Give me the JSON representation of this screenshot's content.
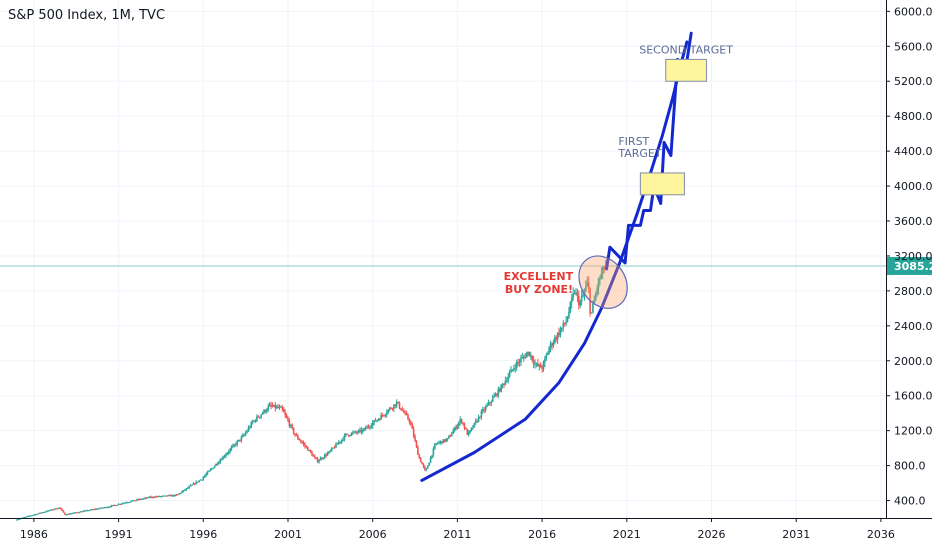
{
  "chart_data": {
    "type": "candlestick",
    "title": "S&P 500 Index, 1M, TVC",
    "x_ticks": [
      "1986",
      "1991",
      "1996",
      "2001",
      "2006",
      "2011",
      "2016",
      "2021",
      "2026",
      "2031",
      "2036"
    ],
    "y_ticks": [
      "400.0",
      "800.0",
      "1200.0",
      "1600.0",
      "2000.0",
      "2400.0",
      "2800.0",
      "3200.0",
      "3600.0",
      "4000.0",
      "4400.0",
      "4800.0",
      "5200.0",
      "5600.0",
      "6000.0"
    ],
    "xlim": [
      1984.0,
      2036.3
    ],
    "ylim": [
      200,
      6130
    ],
    "grid": true,
    "price_line": {
      "value": 3085.2,
      "label": "3085.2",
      "color": "#26a69a"
    },
    "price_anchors": [
      [
        1985.0,
        180
      ],
      [
        1987.6,
        320
      ],
      [
        1987.9,
        240
      ],
      [
        1990.5,
        330
      ],
      [
        1991.5,
        380
      ],
      [
        1993.0,
        440
      ],
      [
        1994.5,
        460
      ],
      [
        1996.0,
        650
      ],
      [
        1997.5,
        950
      ],
      [
        1998.5,
        1150
      ],
      [
        1999.0,
        1300
      ],
      [
        2000.0,
        1480
      ],
      [
        2000.7,
        1450
      ],
      [
        2001.5,
        1150
      ],
      [
        2002.2,
        1000
      ],
      [
        2002.8,
        850
      ],
      [
        2003.5,
        950
      ],
      [
        2004.5,
        1150
      ],
      [
        2005.5,
        1200
      ],
      [
        2006.5,
        1350
      ],
      [
        2007.5,
        1520
      ],
      [
        2008.3,
        1300
      ],
      [
        2008.8,
        900
      ],
      [
        2009.2,
        730
      ],
      [
        2009.8,
        1050
      ],
      [
        2010.5,
        1100
      ],
      [
        2011.3,
        1330
      ],
      [
        2011.7,
        1150
      ],
      [
        2012.5,
        1400
      ],
      [
        2013.5,
        1650
      ],
      [
        2014.5,
        1950
      ],
      [
        2015.3,
        2100
      ],
      [
        2015.7,
        1950
      ],
      [
        2016.1,
        1920
      ],
      [
        2016.5,
        2150
      ],
      [
        2017.5,
        2450
      ],
      [
        2018.0,
        2800
      ],
      [
        2018.3,
        2650
      ],
      [
        2018.8,
        2900
      ],
      [
        2018.95,
        2500
      ],
      [
        2019.4,
        2900
      ],
      [
        2019.8,
        3085
      ]
    ],
    "series": [
      {
        "type": "line",
        "color": "#1428d0",
        "values": [
          [
            2008.9,
            630
          ],
          [
            2012.0,
            950
          ],
          [
            2015.0,
            1330
          ],
          [
            2017.0,
            1750
          ],
          [
            2018.5,
            2200
          ],
          [
            2019.5,
            2600
          ],
          [
            2020.6,
            3130
          ],
          [
            2021.6,
            3680
          ],
          [
            2022.4,
            4150
          ],
          [
            2023.1,
            4580
          ],
          [
            2023.7,
            5000
          ],
          [
            2024.2,
            5400
          ],
          [
            2024.55,
            5650
          ]
        ]
      },
      {
        "type": "line",
        "color": "#1428d0",
        "values": [
          [
            2019.8,
            3050
          ],
          [
            2020.0,
            3300
          ],
          [
            2020.9,
            3120
          ],
          [
            2021.1,
            3550
          ],
          [
            2021.8,
            3550
          ],
          [
            2022.0,
            3720
          ],
          [
            2022.4,
            3720
          ],
          [
            2022.6,
            4000
          ],
          [
            2023.0,
            3800
          ],
          [
            2023.2,
            4500
          ],
          [
            2023.6,
            4350
          ],
          [
            2024.0,
            5450
          ],
          [
            2024.4,
            5250
          ],
          [
            2024.8,
            5750
          ]
        ]
      }
    ],
    "annotations": [
      {
        "type": "ellipse",
        "center": [
          2019.6,
          2900
        ],
        "rx_years": 1.3,
        "ry_value": 320,
        "label": "EXCELLENT\nBUY ZONE!",
        "label_color": "#e53935"
      },
      {
        "type": "rect",
        "x": [
          2021.8,
          2024.4
        ],
        "y": [
          3900,
          4150
        ],
        "label": "FIRST\nTARGET",
        "label_color": "#5b6b94"
      },
      {
        "type": "rect",
        "x": [
          2023.3,
          2025.7
        ],
        "y": [
          5200,
          5450
        ],
        "label": "SECOND TARGET",
        "label_color": "#5b6b94"
      }
    ]
  }
}
